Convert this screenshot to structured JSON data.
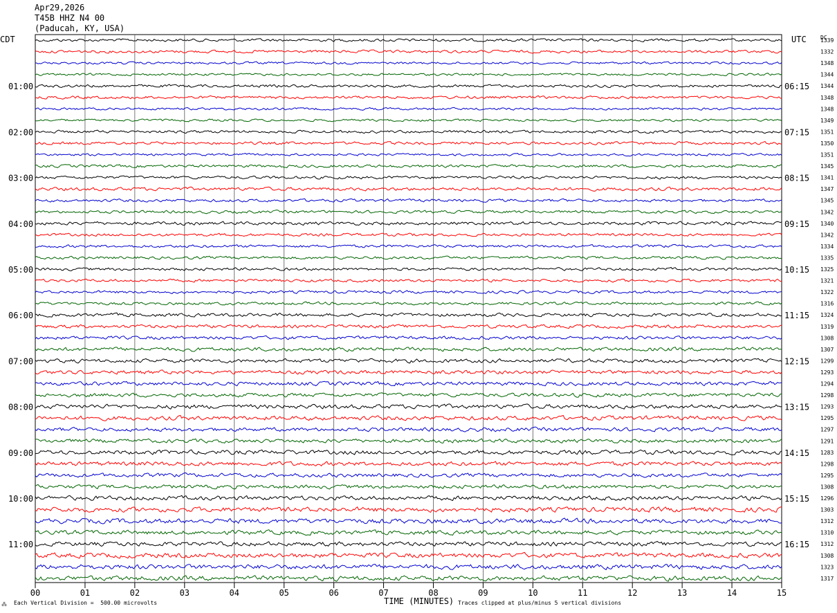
{
  "header": {
    "date": "Apr29,2026",
    "station": "T45B HHZ N4 00",
    "location": "(Paducah, KY, USA)"
  },
  "left_timezone": "CDT",
  "right_timezone": "UTC",
  "dc_label": "DC",
  "footer": {
    "xaxis_title": "TIME (MINUTES)",
    "scale_note": "Each Vertical Division =  500.00 microvolts",
    "clip_note": "Traces clipped at plus/minus 5 vertical divisions",
    "corner_mark": "⁂"
  },
  "colors": {
    "trace_cycle": [
      "#000000",
      "#ff0000",
      "#0000cd",
      "#006400"
    ],
    "grid": "#000000"
  },
  "chart_data": {
    "type": "helicorder",
    "x_range": [
      0,
      15
    ],
    "x_ticks": [
      "00",
      "01",
      "02",
      "03",
      "04",
      "05",
      "06",
      "07",
      "08",
      "09",
      "10",
      "11",
      "12",
      "13",
      "14",
      "15"
    ],
    "left_hour_labels": [
      "01:00",
      "02:00",
      "03:00",
      "04:00",
      "05:00",
      "06:00",
      "07:00",
      "08:00",
      "09:00",
      "10:00",
      "11:00"
    ],
    "right_hour_labels": [
      "06:15",
      "07:15",
      "08:15",
      "09:15",
      "10:15",
      "11:15",
      "12:15",
      "13:15",
      "14:15",
      "15:15",
      "16:15"
    ],
    "dc_offsets": [
      1339,
      1332,
      1348,
      1344,
      1344,
      1348,
      1348,
      1349,
      1351,
      1350,
      1351,
      1345,
      1341,
      1347,
      1345,
      1342,
      1340,
      1342,
      1334,
      1335,
      1325,
      1321,
      1322,
      1316,
      1324,
      1319,
      1308,
      1307,
      1299,
      1293,
      1294,
      1298,
      1293,
      1295,
      1297,
      1291,
      1283,
      1298,
      1295,
      1308,
      1296,
      1303,
      1312,
      1310,
      1312,
      1308,
      1323,
      1317
    ],
    "trace_noise_amplitude": [
      3,
      3,
      2.5,
      2.5,
      3,
      3,
      2.5,
      2.5,
      3,
      3,
      2.5,
      3,
      3,
      3.5,
      3,
      3,
      3.5,
      3,
      3,
      3,
      3,
      3,
      3,
      3,
      3.5,
      3.5,
      3.5,
      4,
      4,
      4,
      4,
      4,
      4.5,
      4.5,
      4,
      4,
      4.5,
      4.5,
      4,
      4,
      4.5,
      5,
      5,
      4.5,
      4.5,
      5,
      5,
      5
    ]
  }
}
